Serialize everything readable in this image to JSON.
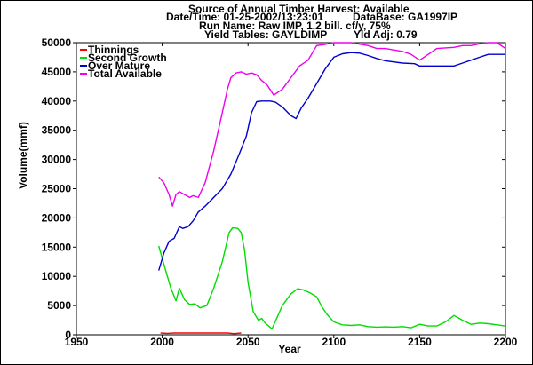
{
  "header": {
    "title": "Source of Annual Timber Harvest: Available",
    "datetime": "Date/Time: 01-25-2002/13:23:01",
    "database": "DataBase: GA1997IP",
    "run_name": "Run Name: Raw IMP, 1.2 bill. cf/y, 75%",
    "yield_tables": "Yield Tables: GAYLDIMP",
    "yld_adj": "Yld Adj: 0.79"
  },
  "chart_data": {
    "type": "line",
    "xlabel": "Year",
    "ylabel": "Volume(mmf)",
    "xlim": [
      1950,
      2200
    ],
    "ylim": [
      0,
      50000
    ],
    "x_ticks": [
      "1950",
      "2000",
      "2050",
      "2100",
      "2150",
      "2200"
    ],
    "y_ticks": [
      "0",
      "5000",
      "10000",
      "15000",
      "20000",
      "25000",
      "30000",
      "35000",
      "40000",
      "45000",
      "50000"
    ],
    "legend_position": "top-left",
    "series": [
      {
        "name": "Thinnings",
        "color": "#ff0000",
        "x": [
          1999,
          2003,
          2007,
          2038,
          2042,
          2046
        ],
        "y": [
          300,
          250,
          300,
          300,
          200,
          300
        ]
      },
      {
        "name": "Second Growth",
        "color": "#00dd00",
        "x": [
          1998,
          2002,
          2005,
          2008,
          2010,
          2013,
          2016,
          2019,
          2022,
          2026,
          2030,
          2035,
          2039,
          2041,
          2044,
          2046,
          2048,
          2050,
          2053,
          2056,
          2058,
          2060,
          2064,
          2067,
          2070,
          2075,
          2079,
          2082,
          2086,
          2090,
          2093,
          2096,
          2100,
          2105,
          2110,
          2115,
          2120,
          2125,
          2130,
          2135,
          2140,
          2145,
          2150,
          2155,
          2160,
          2165,
          2170,
          2175,
          2180,
          2185,
          2190,
          2195,
          2200
        ],
        "y": [
          15200,
          11000,
          8000,
          5800,
          8000,
          6000,
          5200,
          5300,
          4600,
          5000,
          8000,
          12500,
          17500,
          18300,
          18200,
          17500,
          14500,
          9000,
          4000,
          2500,
          2800,
          2000,
          1000,
          3000,
          5000,
          7000,
          7900,
          7700,
          7200,
          6500,
          4800,
          3500,
          2200,
          1700,
          1600,
          1700,
          1400,
          1300,
          1350,
          1300,
          1400,
          1200,
          1800,
          1500,
          1500,
          2200,
          3300,
          2500,
          1800,
          2000,
          1900,
          1700,
          1500
        ]
      },
      {
        "name": "Over Mature",
        "color": "#0000cc",
        "x": [
          1998,
          2001,
          2004,
          2007,
          2010,
          2012,
          2015,
          2018,
          2021,
          2025,
          2030,
          2035,
          2040,
          2045,
          2049,
          2052,
          2055,
          2058,
          2060,
          2063,
          2066,
          2070,
          2075,
          2078,
          2081,
          2085,
          2090,
          2095,
          2100,
          2105,
          2110,
          2115,
          2120,
          2125,
          2130,
          2140,
          2147,
          2150,
          2160,
          2170,
          2175,
          2180,
          2185,
          2190,
          2195,
          2200
        ],
        "y": [
          11000,
          14000,
          16000,
          16500,
          18500,
          18200,
          18500,
          19500,
          21000,
          22000,
          23500,
          25000,
          27500,
          31000,
          34000,
          38000,
          39900,
          40000,
          40000,
          40000,
          39800,
          39000,
          37500,
          37000,
          38800,
          40500,
          43000,
          45500,
          47500,
          48100,
          48300,
          48200,
          47800,
          47300,
          46900,
          46500,
          46400,
          46000,
          46000,
          46000,
          46500,
          47000,
          47500,
          48000,
          48000,
          48000
        ]
      },
      {
        "name": "Total Available",
        "color": "#ee00ee",
        "x": [
          1998,
          2001,
          2004,
          2006,
          2008,
          2010,
          2013,
          2016,
          2018,
          2021,
          2025,
          2030,
          2035,
          2038,
          2040,
          2043,
          2046,
          2049,
          2052,
          2055,
          2058,
          2061,
          2065,
          2070,
          2075,
          2080,
          2085,
          2090,
          2095,
          2100,
          2110,
          2120,
          2125,
          2130,
          2140,
          2145,
          2150,
          2155,
          2160,
          2170,
          2175,
          2180,
          2185,
          2190,
          2195,
          2200
        ],
        "y": [
          27000,
          26000,
          24000,
          22000,
          24000,
          24500,
          24000,
          23500,
          23800,
          23500,
          26000,
          31500,
          38000,
          42000,
          44000,
          44800,
          45000,
          44600,
          44800,
          44500,
          43500,
          42800,
          41000,
          42000,
          44000,
          46000,
          47000,
          49500,
          49700,
          50000,
          50000,
          49500,
          49000,
          49000,
          48500,
          48000,
          47000,
          48000,
          49000,
          49200,
          49500,
          49500,
          49800,
          50000,
          50000,
          49000
        ]
      }
    ]
  }
}
